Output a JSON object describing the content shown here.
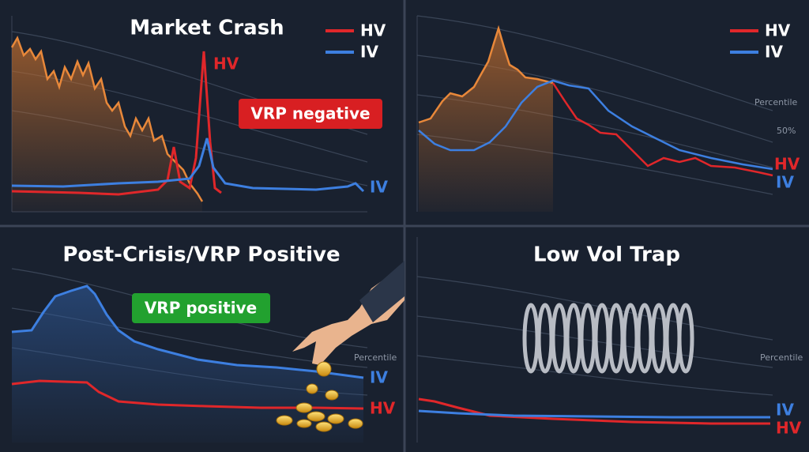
{
  "panels": [
    {
      "title": "Market Crash",
      "legend": [
        "HV",
        "IV"
      ],
      "spike_label": "HV",
      "badge": "VRP negative",
      "line_labels": [
        "IV"
      ]
    },
    {
      "legend": [
        "HV",
        "IV"
      ],
      "axis_label": "Percentile",
      "level_label": "50%",
      "line_labels": [
        "HV",
        "IV"
      ]
    },
    {
      "title": "Post-Crisis/VRP Positive",
      "badge": "VRP positive",
      "axis_label": "Percentile",
      "line_labels": [
        "IV",
        "HV"
      ]
    },
    {
      "title": "Low Vol Trap",
      "axis_label": "Percentile",
      "line_labels": [
        "IV",
        "HV"
      ]
    }
  ]
}
